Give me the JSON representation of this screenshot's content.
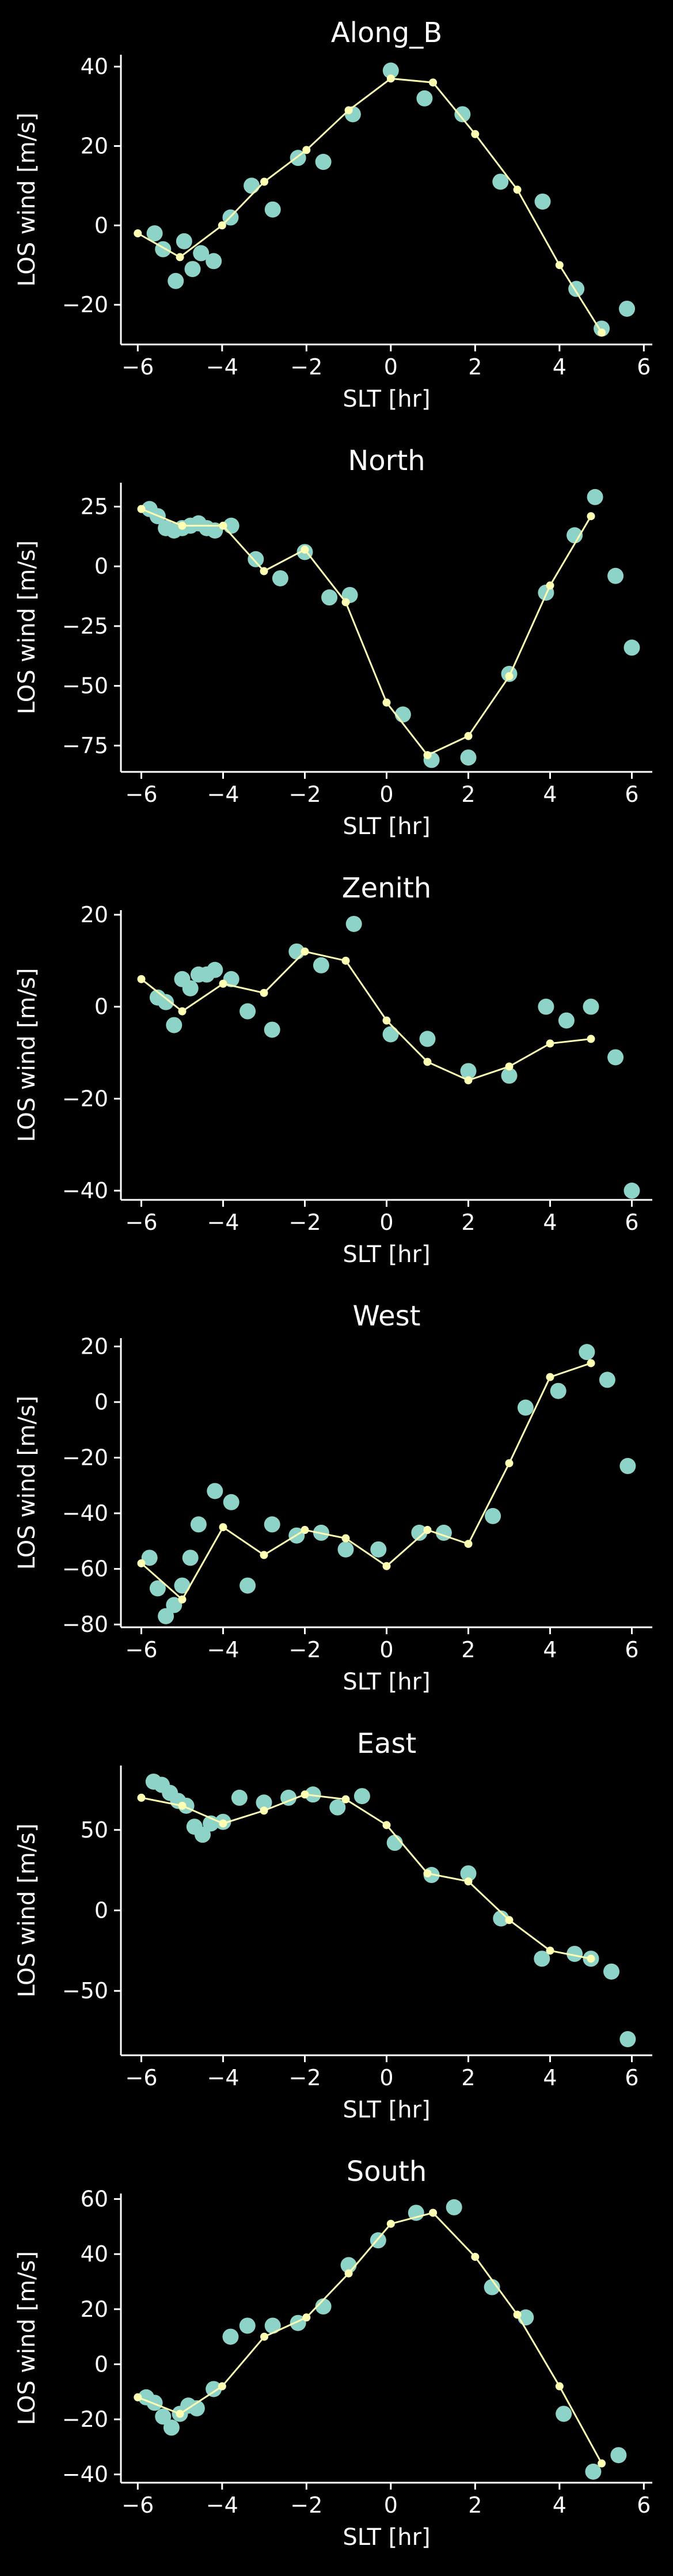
{
  "chart_data": [
    {
      "type": "scatter",
      "title": "Along_B",
      "xlabel": "SLT [hr]",
      "ylabel": "LOS wind [m/s]",
      "xlim": [
        -6.4,
        6.2
      ],
      "ylim": [
        -30,
        43
      ],
      "xticks": [
        -6,
        -4,
        -2,
        0,
        2,
        4,
        6
      ],
      "yticks": [
        -20,
        0,
        20,
        40
      ],
      "colors": {
        "scatter": "#8dd3c7",
        "line": "#ffffb3"
      },
      "scatter": {
        "x": [
          -5.6,
          -5.4,
          -5.1,
          -4.9,
          -4.7,
          -4.5,
          -4.2,
          -3.8,
          -3.3,
          -2.8,
          -2.2,
          -1.6,
          -0.9,
          0.0,
          0.8,
          1.7,
          2.6,
          3.6,
          4.4,
          5.0,
          5.6
        ],
        "y": [
          -2,
          -6,
          -14,
          -4,
          -11,
          -7,
          -9,
          2,
          10,
          4,
          17,
          16,
          28,
          39,
          32,
          28,
          11,
          6,
          -16,
          -26,
          -21
        ]
      },
      "line": {
        "x": [
          -6.0,
          -5.0,
          -4.0,
          -3.0,
          -2.0,
          -1.0,
          0.0,
          1.0,
          2.0,
          3.0,
          4.0,
          5.0
        ],
        "y": [
          -2,
          -8,
          0,
          11,
          19,
          29,
          37,
          36,
          23,
          9,
          -10,
          -27
        ]
      }
    },
    {
      "type": "scatter",
      "title": "North",
      "xlabel": "SLT [hr]",
      "ylabel": "LOS wind [m/s]",
      "xlim": [
        -6.5,
        6.5
      ],
      "ylim": [
        -86,
        35
      ],
      "xticks": [
        -6,
        -4,
        -2,
        0,
        2,
        4,
        6
      ],
      "yticks": [
        -75,
        -50,
        -25,
        0,
        25
      ],
      "colors": {
        "scatter": "#8dd3c7",
        "line": "#ffffb3"
      },
      "scatter": {
        "x": [
          -5.8,
          -5.6,
          -5.4,
          -5.2,
          -5.0,
          -4.8,
          -4.6,
          -4.4,
          -4.2,
          -3.8,
          -3.2,
          -2.6,
          -2.0,
          -1.4,
          -0.9,
          0.4,
          1.1,
          2.0,
          3.0,
          3.9,
          4.6,
          5.1,
          5.6,
          6.0
        ],
        "y": [
          24,
          21,
          16,
          15,
          16,
          17,
          18,
          16,
          15,
          17,
          3,
          -5,
          6,
          -13,
          -12,
          -62,
          -81,
          -80,
          -45,
          -11,
          13,
          29,
          -4,
          -34
        ]
      },
      "line": {
        "x": [
          -6.0,
          -5.0,
          -4.0,
          -3.0,
          -2.0,
          -1.0,
          0.0,
          1.0,
          2.0,
          3.0,
          4.0,
          5.0
        ],
        "y": [
          24,
          17,
          17,
          -2,
          7,
          -15,
          -57,
          -79,
          -71,
          -46,
          -8,
          21
        ]
      }
    },
    {
      "type": "scatter",
      "title": "Zenith",
      "xlabel": "SLT [hr]",
      "ylabel": "LOS wind [m/s]",
      "xlim": [
        -6.5,
        6.5
      ],
      "ylim": [
        -42,
        21
      ],
      "xticks": [
        -6,
        -4,
        -2,
        0,
        2,
        4,
        6
      ],
      "yticks": [
        -40,
        -20,
        0,
        20
      ],
      "colors": {
        "scatter": "#8dd3c7",
        "line": "#ffffb3"
      },
      "scatter": {
        "x": [
          -5.6,
          -5.4,
          -5.2,
          -5.0,
          -4.8,
          -4.6,
          -4.4,
          -4.2,
          -3.8,
          -3.4,
          -2.8,
          -2.2,
          -1.6,
          -0.8,
          0.1,
          1.0,
          2.0,
          3.0,
          3.9,
          4.4,
          5.0,
          5.6,
          6.0
        ],
        "y": [
          2,
          1,
          -4,
          6,
          4,
          7,
          7,
          8,
          6,
          -1,
          -5,
          12,
          9,
          18,
          -6,
          -7,
          -14,
          -15,
          0,
          -3,
          0,
          -11,
          -40
        ]
      },
      "line": {
        "x": [
          -6.0,
          -5.0,
          -4.0,
          -3.0,
          -2.0,
          -1.0,
          0.0,
          1.0,
          2.0,
          3.0,
          4.0,
          5.0
        ],
        "y": [
          6,
          -1,
          5,
          3,
          12,
          10,
          -3,
          -12,
          -16,
          -13,
          -8,
          -7
        ]
      }
    },
    {
      "type": "scatter",
      "title": "West",
      "xlabel": "SLT [hr]",
      "ylabel": "LOS wind [m/s]",
      "xlim": [
        -6.5,
        6.5
      ],
      "ylim": [
        -81,
        23
      ],
      "xticks": [
        -6,
        -4,
        -2,
        0,
        2,
        4,
        6
      ],
      "yticks": [
        -80,
        -60,
        -40,
        -20,
        0,
        20
      ],
      "colors": {
        "scatter": "#8dd3c7",
        "line": "#ffffb3"
      },
      "scatter": {
        "x": [
          -5.8,
          -5.6,
          -5.4,
          -5.2,
          -5.0,
          -4.8,
          -4.6,
          -4.2,
          -3.8,
          -3.4,
          -2.8,
          -2.2,
          -1.6,
          -1.0,
          -0.2,
          0.8,
          1.4,
          2.6,
          3.4,
          4.2,
          4.9,
          5.4,
          5.9
        ],
        "y": [
          -56,
          -67,
          -77,
          -73,
          -66,
          -56,
          -44,
          -32,
          -36,
          -66,
          -44,
          -48,
          -47,
          -53,
          -53,
          -47,
          -47,
          -41,
          -2,
          4,
          18,
          8,
          -23
        ]
      },
      "line": {
        "x": [
          -6.0,
          -5.0,
          -4.0,
          -3.0,
          -2.0,
          -1.0,
          0.0,
          1.0,
          2.0,
          3.0,
          4.0,
          5.0
        ],
        "y": [
          -58,
          -71,
          -45,
          -55,
          -46,
          -49,
          -59,
          -46,
          -51,
          -22,
          9,
          14
        ]
      }
    },
    {
      "type": "scatter",
      "title": "East",
      "xlabel": "SLT [hr]",
      "ylabel": "LOS wind [m/s]",
      "xlim": [
        -6.5,
        6.5
      ],
      "ylim": [
        -90,
        90
      ],
      "xticks": [
        -6,
        -4,
        -2,
        0,
        2,
        4,
        6
      ],
      "yticks": [
        -50,
        0,
        50
      ],
      "colors": {
        "scatter": "#8dd3c7",
        "line": "#ffffb3"
      },
      "scatter": {
        "x": [
          -5.7,
          -5.5,
          -5.3,
          -5.1,
          -4.9,
          -4.7,
          -4.5,
          -4.3,
          -4.0,
          -3.6,
          -3.0,
          -2.4,
          -1.8,
          -1.2,
          -0.6,
          0.2,
          1.1,
          2.0,
          2.8,
          3.8,
          4.6,
          5.0,
          5.5,
          5.9
        ],
        "y": [
          80,
          78,
          73,
          68,
          65,
          52,
          47,
          54,
          55,
          70,
          67,
          70,
          72,
          64,
          71,
          42,
          22,
          23,
          -5,
          -30,
          -27,
          -30,
          -38,
          -80
        ]
      },
      "line": {
        "x": [
          -6.0,
          -5.0,
          -4.0,
          -3.0,
          -2.0,
          -1.0,
          0.0,
          1.0,
          2.0,
          3.0,
          4.0,
          5.0
        ],
        "y": [
          70,
          65,
          54,
          62,
          72,
          69,
          53,
          23,
          18,
          -6,
          -25,
          -30
        ]
      }
    },
    {
      "type": "scatter",
      "title": "South",
      "xlabel": "SLT [hr]",
      "ylabel": "LOS wind [m/s]",
      "xlim": [
        -6.4,
        6.2
      ],
      "ylim": [
        -43,
        62
      ],
      "xticks": [
        -6,
        -4,
        -2,
        0,
        2,
        4,
        6
      ],
      "yticks": [
        -40,
        -20,
        0,
        20,
        40,
        60
      ],
      "colors": {
        "scatter": "#8dd3c7",
        "line": "#ffffb3"
      },
      "scatter": {
        "x": [
          -5.8,
          -5.6,
          -5.4,
          -5.2,
          -5.0,
          -4.8,
          -4.6,
          -4.2,
          -3.8,
          -3.4,
          -2.8,
          -2.2,
          -1.6,
          -1.0,
          -0.3,
          0.6,
          1.5,
          2.4,
          3.2,
          4.1,
          4.8,
          5.4
        ],
        "y": [
          -12,
          -14,
          -19,
          -23,
          -18,
          -15,
          -16,
          -9,
          10,
          14,
          14,
          15,
          21,
          36,
          45,
          55,
          57,
          28,
          17,
          -18,
          -39,
          -33
        ]
      },
      "line": {
        "x": [
          -6.0,
          -5.0,
          -4.0,
          -3.0,
          -2.0,
          -1.0,
          0.0,
          1.0,
          2.0,
          3.0,
          4.0,
          5.0
        ],
        "y": [
          -12,
          -18,
          -8,
          10,
          17,
          33,
          51,
          55,
          39,
          18,
          -8,
          -36
        ]
      }
    }
  ]
}
